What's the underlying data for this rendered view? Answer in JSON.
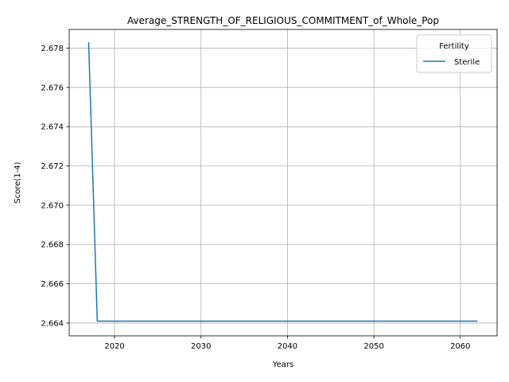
{
  "chart_data": {
    "type": "line",
    "title": "Average_STRENGTH_OF_RELIGIOUS_COMMITMENT_of_Whole_Pop",
    "xlabel": "Years",
    "ylabel": "Score(1-4)",
    "xlim": [
      2014.75,
      2064.25
    ],
    "ylim": [
      2663.35,
      2678.95
    ],
    "y_scale_factor": 0.001,
    "xticks": [
      2020,
      2030,
      2040,
      2050,
      2060
    ],
    "yticks": [
      2.664,
      2.666,
      2.668,
      2.67,
      2.672,
      2.674,
      2.676,
      2.678
    ],
    "grid": true,
    "legend": {
      "title": "Fertility",
      "placement": "top-right"
    },
    "series": [
      {
        "name": "Sterile",
        "color": "#1f77b4",
        "x": [
          2017,
          2018,
          2019,
          2020,
          2021,
          2022,
          2023,
          2024,
          2025,
          2026,
          2027,
          2028,
          2029,
          2030,
          2031,
          2032,
          2033,
          2034,
          2035,
          2036,
          2037,
          2038,
          2039,
          2040,
          2041,
          2042,
          2043,
          2044,
          2045,
          2046,
          2047,
          2048,
          2049,
          2050,
          2051,
          2052,
          2053,
          2054,
          2055,
          2056,
          2057,
          2058,
          2059,
          2060,
          2061,
          2062
        ],
        "y": [
          2.6783,
          2.6641,
          2.6641,
          2.6641,
          2.6641,
          2.6641,
          2.6641,
          2.6641,
          2.6641,
          2.6641,
          2.6641,
          2.6641,
          2.6641,
          2.6641,
          2.6641,
          2.6641,
          2.6641,
          2.6641,
          2.6641,
          2.6641,
          2.6641,
          2.6641,
          2.6641,
          2.6641,
          2.6641,
          2.6641,
          2.6641,
          2.6641,
          2.6641,
          2.6641,
          2.6641,
          2.6641,
          2.6641,
          2.6641,
          2.6641,
          2.6641,
          2.6641,
          2.6641,
          2.6641,
          2.6641,
          2.6641,
          2.6641,
          2.6641,
          2.6641,
          2.6641,
          2.6641
        ]
      }
    ]
  },
  "colors": {
    "grid": "#b0b0b0",
    "axes": "#000000",
    "legend_border": "#cccccc"
  }
}
